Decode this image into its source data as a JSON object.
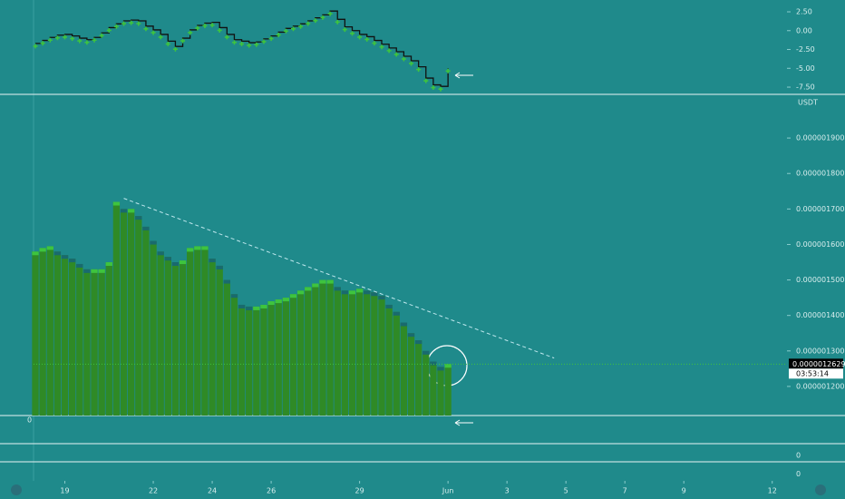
{
  "chart_data": [
    {
      "type": "bar",
      "color": "#2f8a26",
      "up_color": "#3ec43e",
      "down_color": "#196a6e",
      "y_axis_label": "USDT",
      "x": [
        18,
        18.25,
        18.5,
        18.75,
        19,
        19.25,
        19.5,
        19.75,
        20,
        20.25,
        20.5,
        20.75,
        21,
        21.25,
        21.5,
        21.75,
        22,
        22.25,
        22.5,
        22.75,
        23,
        23.25,
        23.5,
        23.75,
        24,
        24.25,
        24.5,
        24.75,
        25,
        25.25,
        25.5,
        25.75,
        26,
        26.25,
        26.5,
        26.75,
        27,
        27.25,
        27.5,
        27.75,
        28,
        28.25,
        28.5,
        28.75,
        29,
        29.25,
        29.5,
        29.75,
        30,
        30.25,
        30.5,
        30.75,
        31,
        31.25,
        31.5,
        31.75,
        32
      ],
      "values": [
        1.58e-06,
        1.59e-06,
        1.595e-06,
        1.58e-06,
        1.57e-06,
        1.56e-06,
        1.545e-06,
        1.53e-06,
        1.53e-06,
        1.53e-06,
        1.55e-06,
        1.72e-06,
        1.7e-06,
        1.7e-06,
        1.68e-06,
        1.65e-06,
        1.61e-06,
        1.58e-06,
        1.565e-06,
        1.55e-06,
        1.555e-06,
        1.59e-06,
        1.595e-06,
        1.595e-06,
        1.56e-06,
        1.54e-06,
        1.5e-06,
        1.46e-06,
        1.43e-06,
        1.425e-06,
        1.425e-06,
        1.43e-06,
        1.44e-06,
        1.445e-06,
        1.45e-06,
        1.46e-06,
        1.47e-06,
        1.48e-06,
        1.49e-06,
        1.5e-06,
        1.5e-06,
        1.48e-06,
        1.47e-06,
        1.47e-06,
        1.475e-06,
        1.47e-06,
        1.465e-06,
        1.455e-06,
        1.43e-06,
        1.41e-06,
        1.38e-06,
        1.35e-06,
        1.33e-06,
        1.3e-06,
        1.27e-06,
        1.255e-06,
        1.263e-06
      ],
      "xlim": [
        16.8,
        43.5
      ],
      "xticks": [
        19,
        22,
        24,
        26,
        29,
        {
          "value": 32,
          "label": "Jun"
        },
        {
          "value": 34,
          "label": "3"
        },
        {
          "value": 36,
          "label": "5"
        },
        {
          "value": 38,
          "label": "7"
        },
        {
          "value": 40,
          "label": "9"
        },
        {
          "value": 43,
          "label": "12"
        }
      ],
      "ylim": [
        1.118e-06,
        2.023e-06
      ],
      "yticks": [
        {
          "value": 1.9e-06,
          "label": "0.0000019000"
        },
        {
          "value": 1.8e-06,
          "label": "0.0000018000"
        },
        {
          "value": 1.7e-06,
          "label": "0.0000017000"
        },
        {
          "value": 1.6e-06,
          "label": "0.0000016000"
        },
        {
          "value": 1.5e-06,
          "label": "0.0000015000"
        },
        {
          "value": 1.4e-06,
          "label": "0.0000014000"
        },
        {
          "value": 1.3e-06,
          "label": "0.0000013000"
        },
        {
          "value": 1.2e-06,
          "label": "0.0000012000"
        }
      ],
      "last_price": {
        "value": 1.2629e-06,
        "label": "0.0000012629"
      },
      "countdown": "03:53:14",
      "trendline": {
        "x": [
          21,
          35.6
        ],
        "y": [
          1.73e-06,
          1.28e-06
        ]
      }
    },
    {
      "type": "step",
      "color": "#111111",
      "marker_color": "#3ec43e",
      "x": [
        18,
        18.25,
        18.5,
        18.75,
        19,
        19.25,
        19.5,
        19.75,
        20,
        20.25,
        20.5,
        20.75,
        21,
        21.25,
        21.5,
        21.75,
        22,
        22.25,
        22.5,
        22.75,
        23,
        23.25,
        23.5,
        23.75,
        24,
        24.25,
        24.5,
        24.75,
        25,
        25.25,
        25.5,
        25.75,
        26,
        26.25,
        26.5,
        26.75,
        27,
        27.25,
        27.5,
        27.75,
        28,
        28.25,
        28.5,
        28.75,
        29,
        29.25,
        29.5,
        29.75,
        30,
        30.25,
        30.5,
        30.75,
        31,
        31.25,
        31.5,
        31.75,
        32
      ],
      "values": [
        -1.7,
        -1.3,
        -0.9,
        -0.6,
        -0.5,
        -0.7,
        -1.0,
        -1.2,
        -0.9,
        -0.3,
        0.4,
        0.9,
        1.3,
        1.4,
        1.3,
        0.6,
        0.1,
        -0.5,
        -1.4,
        -2.1,
        -1.0,
        0.1,
        0.7,
        1.0,
        1.1,
        0.4,
        -0.5,
        -1.2,
        -1.4,
        -1.6,
        -1.5,
        -1.1,
        -0.7,
        -0.2,
        0.3,
        0.6,
        0.9,
        1.3,
        1.7,
        2.1,
        2.6,
        1.5,
        0.5,
        0.0,
        -0.5,
        -0.8,
        -1.3,
        -1.8,
        -2.3,
        -2.8,
        -3.4,
        -4.0,
        -4.8,
        -6.3,
        -7.2,
        -7.4,
        -5.0
      ],
      "xlim": [
        16.8,
        43.5
      ],
      "ylim": [
        -8.46,
        4.07
      ],
      "yticks": [
        {
          "value": 2.5,
          "label": "2.50"
        },
        {
          "value": 0,
          "label": "0.00"
        },
        {
          "value": -2.5,
          "label": "-2.50"
        },
        {
          "value": -5,
          "label": "-5.00"
        },
        {
          "value": -7.5,
          "label": "-7.50"
        }
      ]
    }
  ],
  "lower_panels": [
    {
      "yticks": [
        0
      ]
    },
    {
      "yticks": [
        0
      ]
    },
    {
      "yticks": [
        0
      ]
    }
  ]
}
